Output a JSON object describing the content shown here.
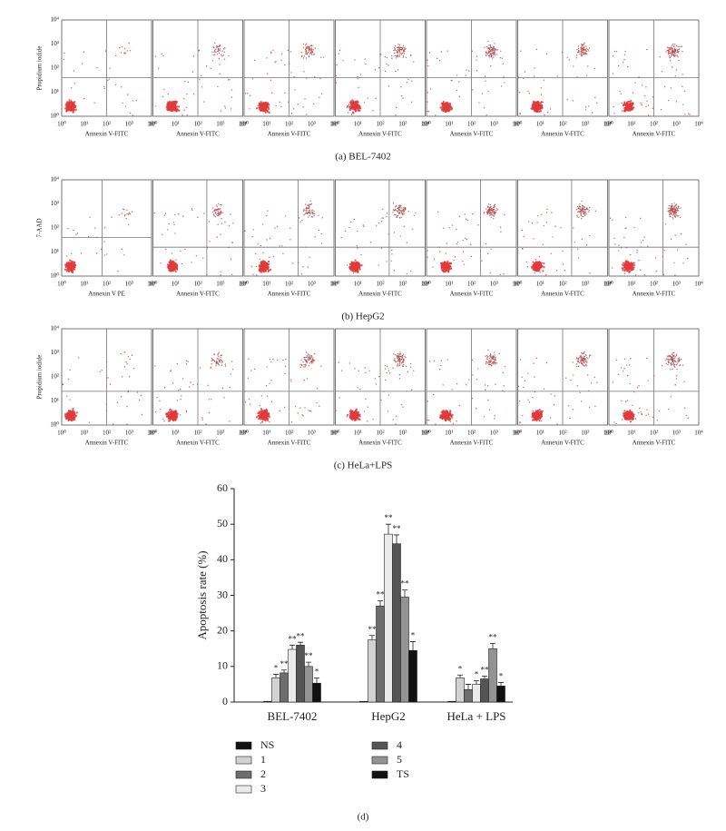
{
  "flow_rows": [
    {
      "caption": "(a)  BEL-7402",
      "y_label": "Propidium iodide",
      "tick_labels": [
        "10⁰",
        "10¹",
        "10²",
        "10³",
        "10⁴"
      ],
      "x_labels": [
        "Annexin V-FITC",
        "Annexin V-FITC",
        "Annexin V-FITC",
        "Annexin V-FITC",
        "Annexin V-FITC",
        "Annexin V-FITC",
        "Annexin V-FITC"
      ]
    },
    {
      "caption": "(b)  HepG2",
      "y_label": "7-AAD",
      "tick_labels": [
        "10⁰",
        "10¹",
        "10²",
        "10³",
        "10⁴"
      ],
      "x_labels": [
        "Annexin V PE",
        "Annexin V-FITC",
        "Annexin V-FITC",
        "Annexin V-FITC",
        "Annexin V-FITC",
        "Annexin V-FITC",
        "Annexin V-FITC"
      ]
    },
    {
      "caption": "(c)  HeLa+LPS",
      "y_label": "Propidium iodide",
      "tick_labels": [
        "10⁰",
        "10¹",
        "10²",
        "10³",
        "10⁴"
      ],
      "x_labels": [
        "Annexin V-FITC",
        "Annexin V-FITC",
        "Annexin V-FITC",
        "Annexin V-FITC",
        "Annexin V-FITC",
        "Annexin V-FITC",
        "Annexin V-FITC"
      ]
    }
  ],
  "chart_data": {
    "type": "bar",
    "caption": "(d)",
    "y_label": "Apoptosis rate (%)",
    "categories": [
      "BEL-7402",
      "HepG2",
      "HeLa + LPS"
    ],
    "ylim": [
      0,
      60
    ],
    "yticks": [
      0,
      10,
      20,
      30,
      40,
      50,
      60
    ],
    "series": [
      {
        "name": "NS",
        "color": "#111111",
        "values": [
          0.2,
          0.2,
          0.2
        ],
        "errors": [
          0,
          0,
          0
        ],
        "significance": [
          null,
          null,
          null
        ]
      },
      {
        "name": "1",
        "color": "#d2d2d2",
        "values": [
          6.8,
          17.5,
          6.8
        ],
        "errors": [
          1,
          1.2,
          0.8
        ],
        "significance": [
          "*",
          "**",
          "*"
        ]
      },
      {
        "name": "2",
        "color": "#6e6e6e",
        "values": [
          8.2,
          27,
          3.5
        ],
        "errors": [
          0.8,
          1.5,
          1.5
        ],
        "significance": [
          "**",
          "**",
          null
        ]
      },
      {
        "name": "3",
        "color": "#ebebeb",
        "values": [
          14.8,
          47.2,
          5
        ],
        "errors": [
          1.2,
          2.8,
          1
        ],
        "significance": [
          "**",
          "**",
          "*"
        ]
      },
      {
        "name": "4",
        "color": "#555555",
        "values": [
          16,
          44.5,
          6.5
        ],
        "errors": [
          0.8,
          2.5,
          0.8
        ],
        "significance": [
          "**",
          "**",
          "**"
        ]
      },
      {
        "name": "5",
        "color": "#939393",
        "values": [
          10,
          29.5,
          15
        ],
        "errors": [
          1.2,
          2,
          1.5
        ],
        "significance": [
          "**",
          "**",
          "**"
        ]
      },
      {
        "name": "TS",
        "color": "#111111",
        "values": [
          5.3,
          14.5,
          4.5
        ],
        "errors": [
          1.5,
          2.5,
          1
        ],
        "significance": [
          "*",
          "*",
          "*"
        ]
      }
    ]
  }
}
